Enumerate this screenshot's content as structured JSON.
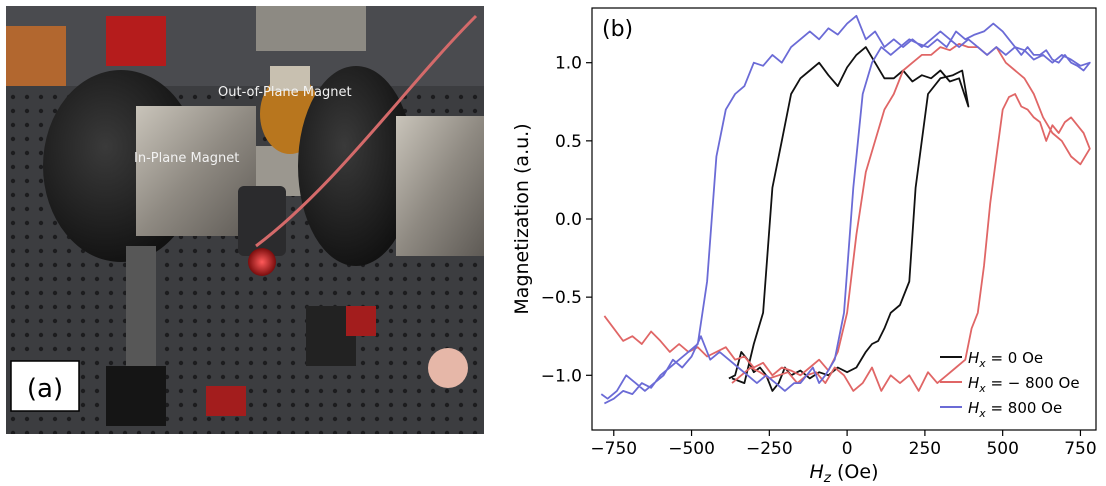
{
  "photo": {
    "panel_label": "(a)",
    "label_out_of_plane": "Out-of-Plane Magnet",
    "label_in_plane": "In-Plane Magnet"
  },
  "chart_data": {
    "type": "line",
    "panel_label": "(b)",
    "title": "",
    "xlabel": "H_z (Oe)",
    "ylabel": "Magnetization (a.u.)",
    "xlim": [
      -820,
      800
    ],
    "ylim": [
      -1.35,
      1.35
    ],
    "xticks": [
      -750,
      -500,
      -250,
      0,
      250,
      500,
      750
    ],
    "yticks": [
      -1.0,
      -0.5,
      0.0,
      0.5,
      1.0
    ],
    "xtick_labels": [
      "−750",
      "−500",
      "−250",
      "0",
      "250",
      "500",
      "750"
    ],
    "ytick_labels": [
      "−1.0",
      "−0.5",
      "0.0",
      "0.5",
      "1.0"
    ],
    "grid": false,
    "legend_position": "bottom-right",
    "series": [
      {
        "name": "H_x = 0 Oe",
        "color": "#111111",
        "x": [
          -370,
          -330,
          -300,
          -270,
          -240,
          -210,
          -180,
          -150,
          -120,
          -90,
          -60,
          -30,
          0,
          30,
          60,
          90,
          120,
          150,
          180,
          210,
          240,
          270,
          300,
          330,
          360,
          390,
          370,
          340,
          300,
          260,
          240,
          220,
          200,
          170,
          140,
          120,
          100,
          80,
          60,
          30,
          0,
          -30,
          -60,
          -90,
          -120,
          -150,
          -180,
          -200,
          -220,
          -240,
          -260,
          -280,
          -300,
          -320,
          -340,
          -360,
          -380
        ],
        "y": [
          -1.02,
          -1.05,
          -0.8,
          -0.6,
          0.2,
          0.5,
          0.8,
          0.9,
          0.95,
          1.0,
          0.92,
          0.85,
          0.97,
          1.05,
          1.1,
          1.0,
          0.9,
          0.9,
          0.95,
          0.88,
          0.92,
          0.9,
          0.95,
          0.88,
          0.9,
          0.72,
          0.95,
          0.92,
          0.9,
          0.8,
          0.5,
          0.2,
          -0.4,
          -0.55,
          -0.6,
          -0.7,
          -0.78,
          -0.8,
          -0.85,
          -0.95,
          -0.98,
          -0.95,
          -1.0,
          -0.98,
          -1.02,
          -0.97,
          -1.0,
          -0.95,
          -1.05,
          -1.1,
          -1.0,
          -0.95,
          -0.98,
          -0.9,
          -0.85,
          -1.0,
          -1.02
        ]
      },
      {
        "name": "H_x = − 800 Oe",
        "color": "#e06666",
        "x": [
          -780,
          -750,
          -720,
          -690,
          -660,
          -630,
          -600,
          -570,
          -540,
          -510,
          -480,
          -450,
          -420,
          -390,
          -360,
          -330,
          -300,
          -270,
          -240,
          -210,
          -180,
          -150,
          -120,
          -90,
          -60,
          -30,
          0,
          30,
          60,
          90,
          120,
          150,
          180,
          210,
          240,
          270,
          300,
          330,
          360,
          390,
          420,
          450,
          480,
          510,
          540,
          570,
          600,
          630,
          660,
          690,
          720,
          750,
          780,
          760,
          740,
          720,
          700,
          680,
          660,
          640,
          620,
          600,
          580,
          560,
          540,
          520,
          500,
          480,
          460,
          440,
          420,
          400,
          380,
          350,
          320,
          290,
          260,
          230,
          200,
          170,
          140,
          110,
          80,
          50,
          20,
          -10,
          -40,
          -70,
          -100,
          -130,
          -160,
          -190,
          -220,
          -250,
          -280,
          -310,
          -340,
          -370
        ],
        "y": [
          -0.62,
          -0.7,
          -0.78,
          -0.75,
          -0.8,
          -0.72,
          -0.78,
          -0.85,
          -0.8,
          -0.85,
          -0.82,
          -0.88,
          -0.85,
          -0.82,
          -0.9,
          -0.88,
          -0.95,
          -0.92,
          -1.0,
          -0.95,
          -0.97,
          -1.0,
          -0.95,
          -0.9,
          -0.97,
          -0.85,
          -0.6,
          -0.1,
          0.3,
          0.5,
          0.7,
          0.8,
          0.95,
          1.0,
          1.05,
          1.05,
          1.1,
          1.08,
          1.12,
          1.1,
          1.1,
          1.05,
          1.1,
          1.0,
          0.95,
          0.9,
          0.8,
          0.65,
          0.55,
          0.5,
          0.4,
          0.35,
          0.45,
          0.55,
          0.6,
          0.65,
          0.62,
          0.55,
          0.6,
          0.5,
          0.62,
          0.65,
          0.7,
          0.72,
          0.8,
          0.78,
          0.7,
          0.4,
          0.1,
          -0.3,
          -0.6,
          -0.7,
          -0.9,
          -0.95,
          -1.0,
          -1.05,
          -0.98,
          -1.1,
          -1.0,
          -1.05,
          -1.0,
          -1.1,
          -0.95,
          -1.05,
          -1.1,
          -1.0,
          -0.95,
          -1.05,
          -0.98,
          -1.0,
          -1.05,
          -0.98,
          -1.0,
          -1.02,
          -0.98,
          -0.95,
          -1.0,
          -1.05
        ]
      },
      {
        "name": "H_x = 800 Oe",
        "color": "#6b6bd6",
        "x": [
          -780,
          -750,
          -720,
          -690,
          -660,
          -630,
          -600,
          -570,
          -540,
          -510,
          -480,
          -450,
          -420,
          -390,
          -360,
          -330,
          -300,
          -270,
          -240,
          -210,
          -180,
          -150,
          -120,
          -90,
          -60,
          -30,
          0,
          30,
          60,
          90,
          120,
          150,
          180,
          210,
          240,
          270,
          300,
          330,
          360,
          390,
          420,
          450,
          480,
          510,
          540,
          570,
          600,
          630,
          660,
          690,
          720,
          750,
          780,
          760,
          740,
          720,
          700,
          680,
          660,
          640,
          620,
          600,
          580,
          560,
          540,
          520,
          500,
          470,
          440,
          410,
          380,
          350,
          320,
          290,
          260,
          230,
          200,
          170,
          140,
          110,
          80,
          50,
          20,
          -10,
          -40,
          -70,
          -90,
          -110,
          -130,
          -150,
          -170,
          -200,
          -230,
          -260,
          -290,
          -320,
          -350,
          -380,
          -410,
          -440,
          -470,
          -500,
          -530,
          -560,
          -590,
          -620,
          -650,
          -680,
          -710,
          -740,
          -770,
          -790
        ],
        "y": [
          -1.18,
          -1.15,
          -1.1,
          -1.12,
          -1.05,
          -1.08,
          -1.0,
          -0.95,
          -0.9,
          -0.85,
          -0.8,
          -0.4,
          0.4,
          0.7,
          0.8,
          0.85,
          1.0,
          0.98,
          1.05,
          1.0,
          1.1,
          1.15,
          1.2,
          1.15,
          1.22,
          1.18,
          1.25,
          1.3,
          1.15,
          1.2,
          1.1,
          1.15,
          1.1,
          1.15,
          1.1,
          1.15,
          1.2,
          1.15,
          1.1,
          1.15,
          1.1,
          1.05,
          1.1,
          1.05,
          1.1,
          1.08,
          1.02,
          1.05,
          1.0,
          1.05,
          1.02,
          0.98,
          1.0,
          0.95,
          0.98,
          1.0,
          1.05,
          1.0,
          1.02,
          1.08,
          1.05,
          1.05,
          1.1,
          1.05,
          1.1,
          1.15,
          1.2,
          1.25,
          1.2,
          1.18,
          1.15,
          1.2,
          1.1,
          1.15,
          1.1,
          1.12,
          1.15,
          1.1,
          1.05,
          1.1,
          1.0,
          0.8,
          0.2,
          -0.6,
          -0.9,
          -1.0,
          -1.05,
          -0.95,
          -1.0,
          -1.05,
          -1.05,
          -1.1,
          -1.05,
          -1.0,
          -1.05,
          -1.0,
          -0.95,
          -0.9,
          -0.85,
          -0.9,
          -0.75,
          -0.88,
          -0.95,
          -0.9,
          -1.0,
          -1.05,
          -1.1,
          -1.05,
          -1.0,
          -1.1,
          -1.15,
          -1.12
        ]
      }
    ]
  }
}
